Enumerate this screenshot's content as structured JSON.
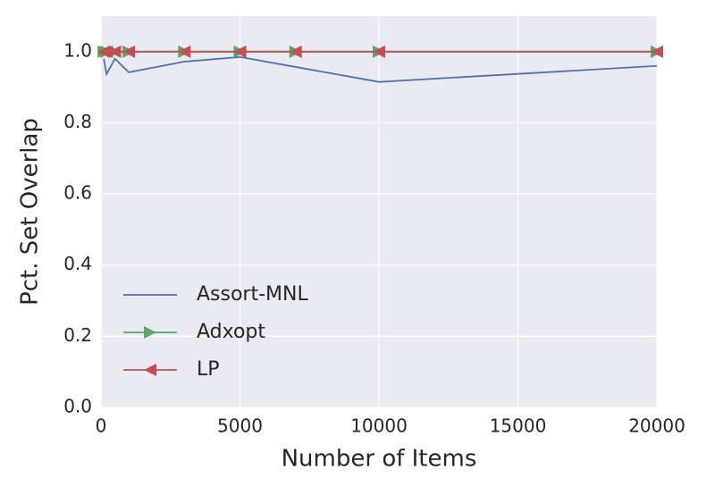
{
  "chart_data": {
    "type": "line",
    "xlabel": "Number of Items",
    "ylabel": "Pct. Set Overlap",
    "x": [
      100,
      200,
      500,
      1000,
      3000,
      5000,
      7000,
      10000,
      20000
    ],
    "series": [
      {
        "name": "Assort-MNL",
        "color": "#4c72b0",
        "marker": "none",
        "values": [
          0.98,
          0.937,
          0.98,
          0.942,
          0.972,
          0.985,
          0.957,
          0.915,
          0.96
        ]
      },
      {
        "name": "Adxopt",
        "color": "#55a868",
        "marker": "triangle-right",
        "values": [
          1.0,
          1.0,
          1.0,
          1.0,
          1.0,
          1.0,
          1.0,
          1.0,
          1.0
        ]
      },
      {
        "name": "LP",
        "color": "#c44e52",
        "marker": "triangle-left",
        "values": [
          1.0,
          1.0,
          1.0,
          1.0,
          1.0,
          1.0,
          1.0,
          1.0,
          1.0
        ]
      }
    ],
    "xlim": [
      0,
      20000
    ],
    "xticks": [
      0,
      5000,
      10000,
      15000,
      20000
    ],
    "ylim": [
      0,
      1.1
    ],
    "yticks": [
      {
        "value": 0,
        "label": "0.0"
      },
      0.2,
      0.4,
      0.6,
      0.8,
      {
        "value": 1,
        "label": "1.0"
      }
    ],
    "grid": true,
    "legend": "lower left"
  }
}
